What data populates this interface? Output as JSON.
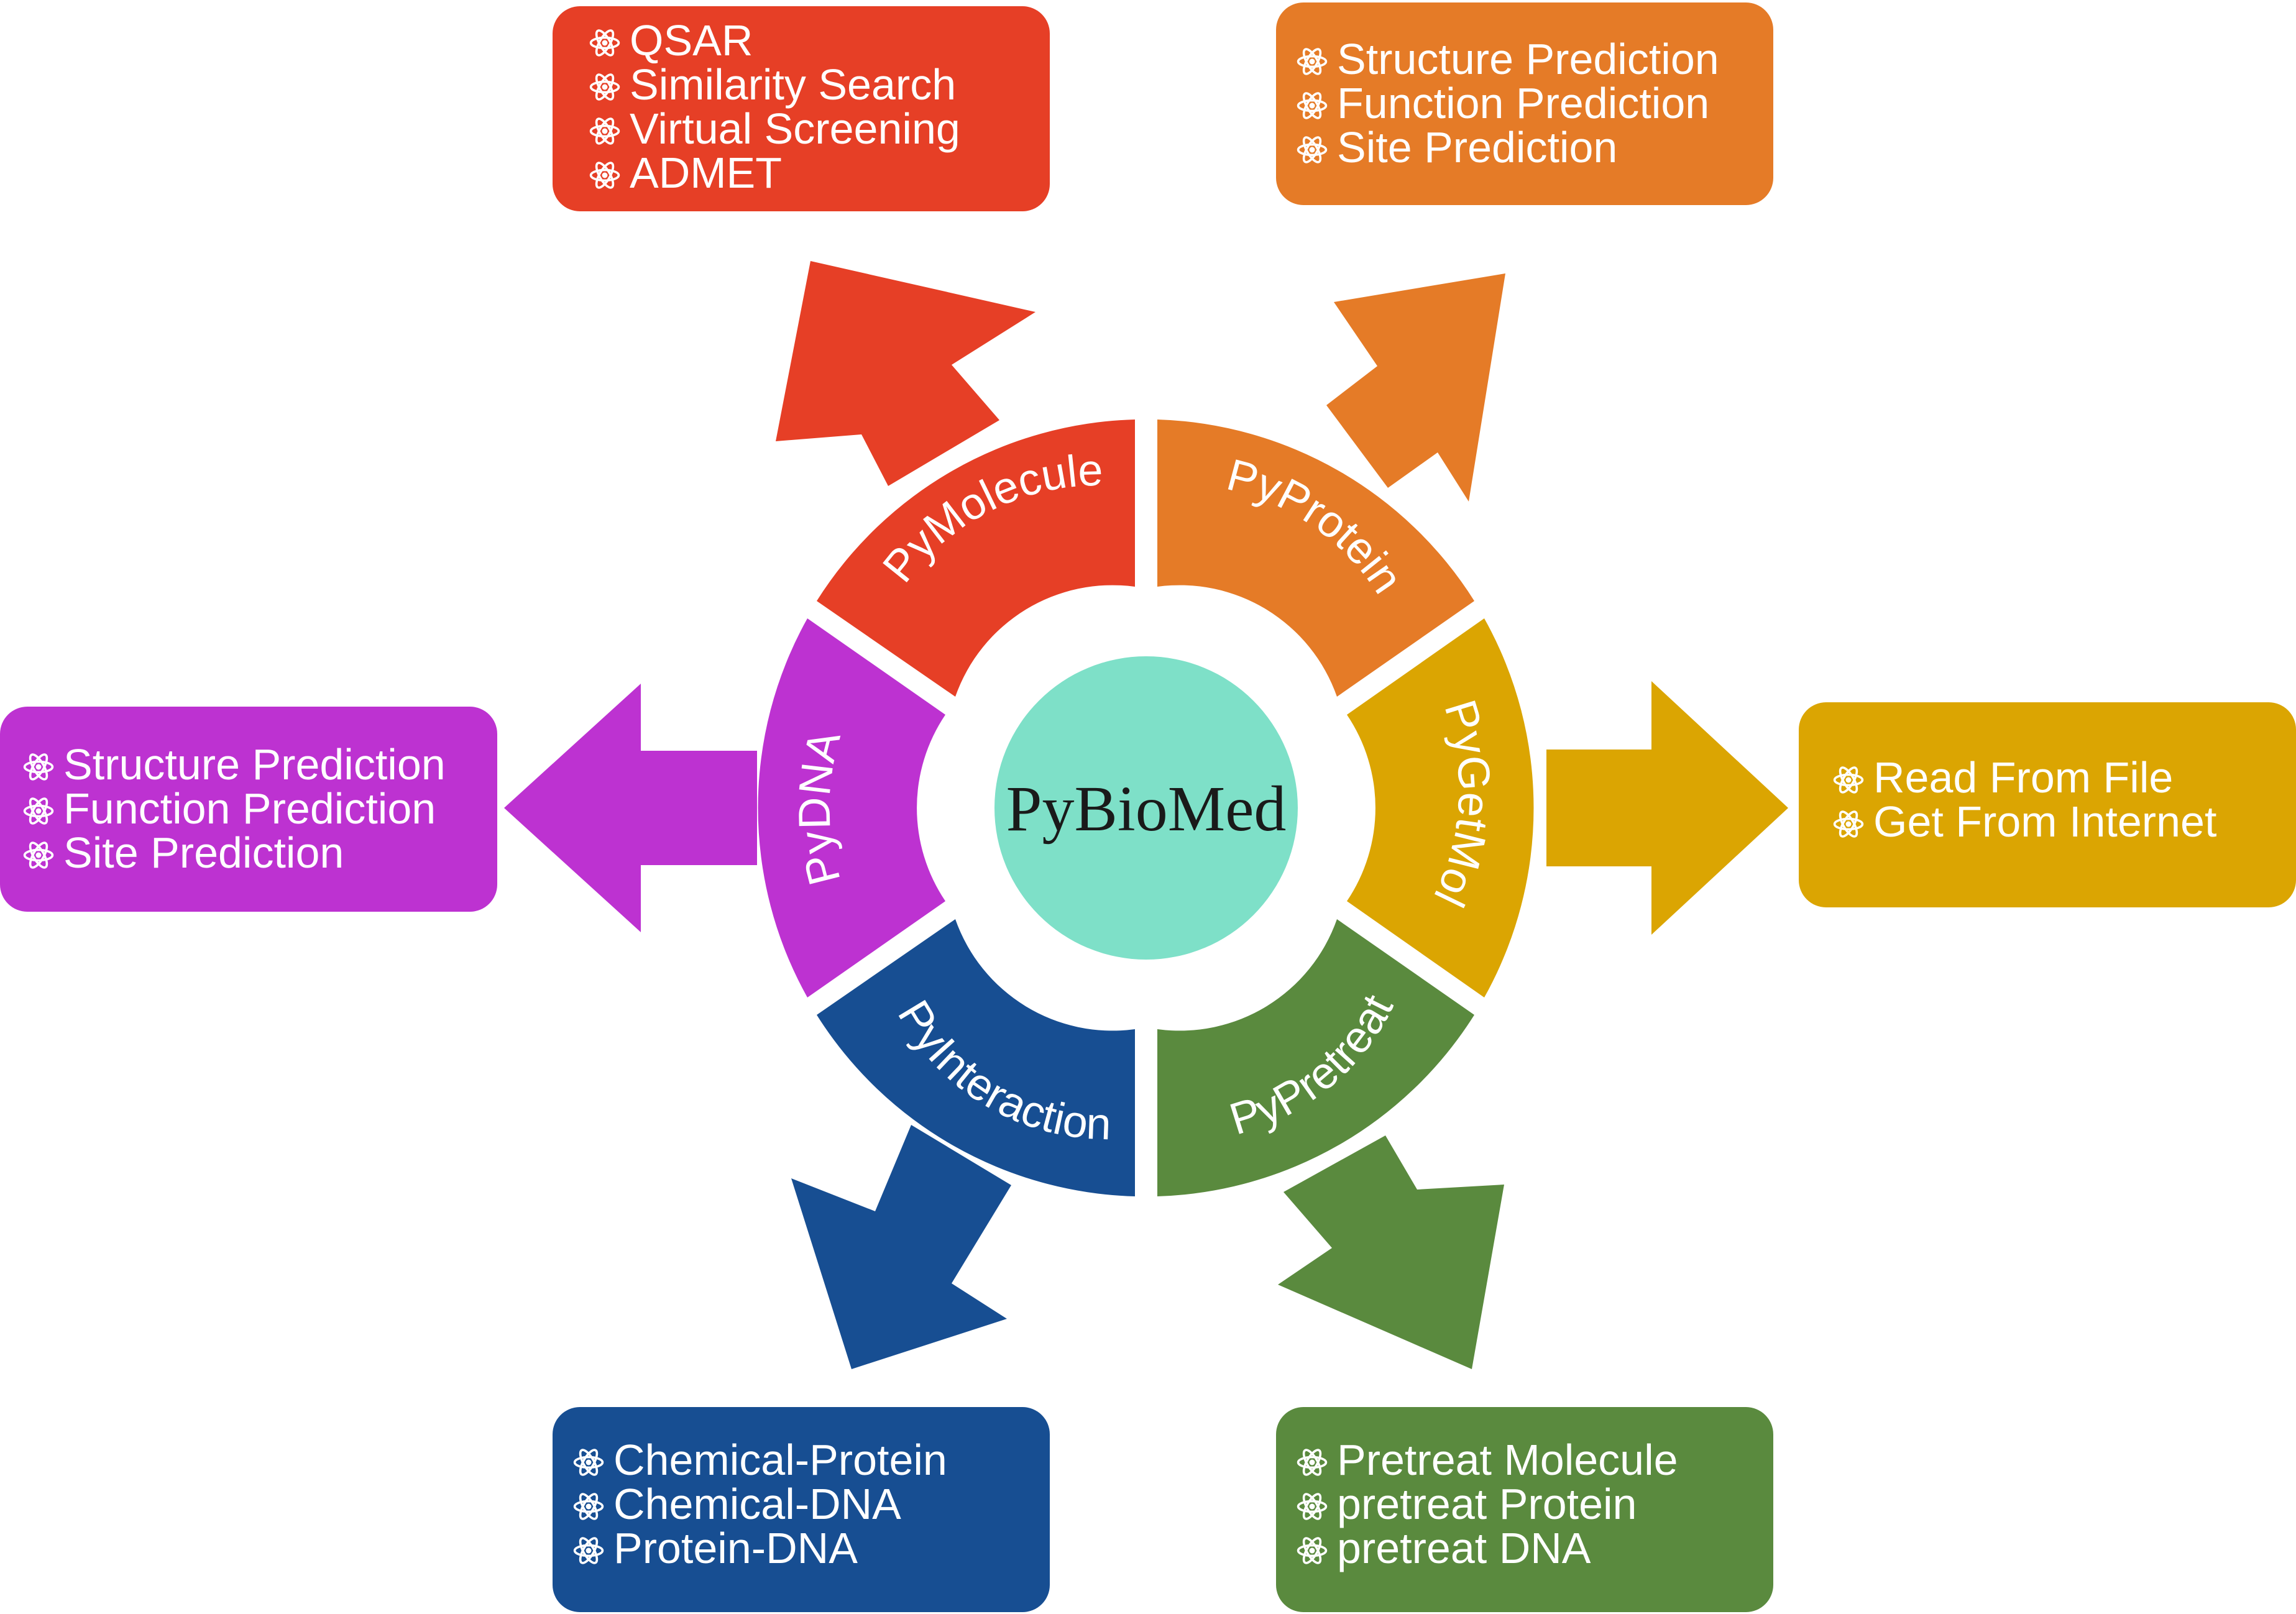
{
  "center": {
    "label": "PyBioMed",
    "fill": "#7ee0c8"
  },
  "bullet_icon": "atom-icon",
  "modules": {
    "pymolecule": {
      "label": "PyMolecule",
      "color": "#e63f26",
      "items": [
        "QSAR",
        "Similarity Search",
        "Virtual Screening",
        "ADMET"
      ]
    },
    "pyprotein": {
      "label": "PyProtein",
      "color": "#e57b27",
      "items": [
        "Structure Prediction",
        "Function Prediction",
        "Site Prediction"
      ]
    },
    "pygetmol": {
      "label": "PyGetMol",
      "color": "#dba502",
      "items": [
        "Read From File",
        "Get From Internet"
      ]
    },
    "pypretreat": {
      "label": "PyPretreat",
      "color": "#5a8a3e",
      "items": [
        "Pretreat Molecule",
        "pretreat Protein",
        "pretreat DNA"
      ]
    },
    "pyinteraction": {
      "label": "PyInteraction",
      "color": "#174e92",
      "items": [
        "Chemical-Protein",
        "Chemical-DNA",
        "Protein-DNA"
      ]
    },
    "pydna": {
      "label": "PyDNA",
      "color": "#bd32d1",
      "items": [
        "Structure Prediction",
        "Function Prediction",
        "Site Prediction"
      ]
    }
  }
}
